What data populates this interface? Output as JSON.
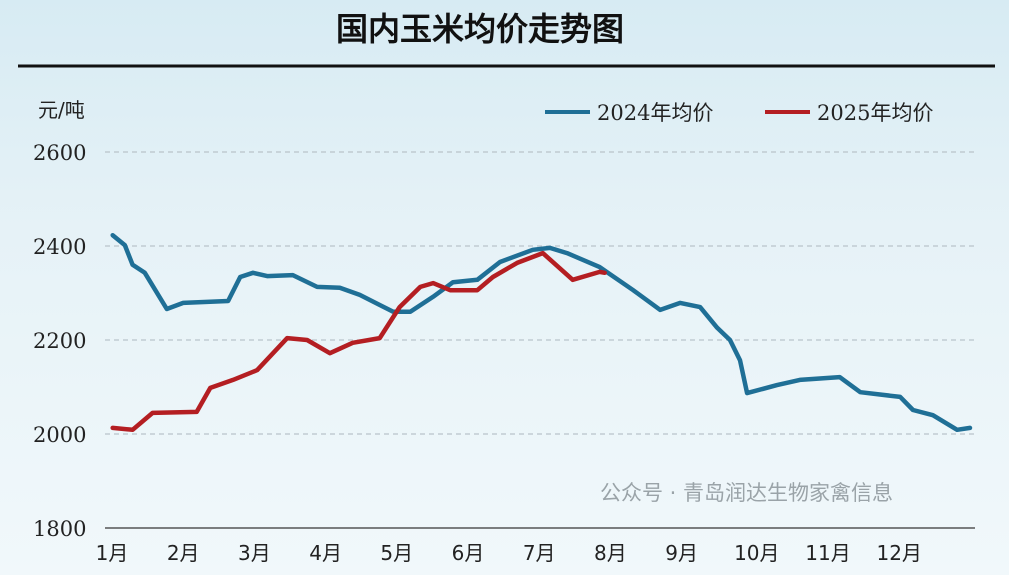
{
  "chart_data": {
    "type": "line",
    "title": "国内玉米均价走势图",
    "ylabel": "元/吨",
    "xlabel": "",
    "ylim": [
      1800,
      2600
    ],
    "yticks": [
      1800,
      2000,
      2200,
      2400,
      2600
    ],
    "xticks": [
      "1月",
      "2月",
      "3月",
      "4月",
      "5月",
      "6月",
      "7月",
      "8月",
      "9月",
      "10月",
      "11月",
      "12月"
    ],
    "grid": true,
    "legend_position": "top-right",
    "series": [
      {
        "name": "2024年均价",
        "color": "#1f6f96",
        "x": [
          1.01,
          1.18,
          1.29,
          1.46,
          1.77,
          2.0,
          2.63,
          2.8,
          2.98,
          3.18,
          3.54,
          3.88,
          4.2,
          4.48,
          4.95,
          5.19,
          5.51,
          5.79,
          6.13,
          6.45,
          6.91,
          7.15,
          7.39,
          7.85,
          8.32,
          8.7,
          8.98,
          9.26,
          9.5,
          9.68,
          9.82,
          9.92,
          10.34,
          10.66,
          11.22,
          11.51,
          12.07,
          12.25,
          12.53,
          12.87,
          13.05
        ],
        "y": [
          2423,
          2402,
          2360,
          2343,
          2266,
          2279,
          2283,
          2334,
          2343,
          2336,
          2338,
          2313,
          2311,
          2296,
          2260,
          2260,
          2292,
          2323,
          2328,
          2366,
          2392,
          2396,
          2385,
          2355,
          2306,
          2264,
          2279,
          2270,
          2226,
          2200,
          2157,
          2087,
          2104,
          2115,
          2121,
          2089,
          2079,
          2051,
          2040,
          2009,
          2013
        ]
      },
      {
        "name": "2025年均价",
        "color": "#b41e22",
        "x": [
          1.01,
          1.29,
          1.57,
          2.19,
          2.38,
          2.7,
          3.04,
          3.46,
          3.74,
          4.06,
          4.38,
          4.76,
          5.04,
          5.33,
          5.51,
          5.75,
          6.13,
          6.35,
          6.69,
          7.05,
          7.47,
          7.85,
          7.92
        ],
        "y": [
          2013,
          2009,
          2045,
          2047,
          2098,
          2115,
          2136,
          2204,
          2200,
          2172,
          2194,
          2204,
          2270,
          2313,
          2321,
          2306,
          2306,
          2334,
          2364,
          2385,
          2328,
          2345,
          2343
        ]
      }
    ]
  },
  "watermark": "公众号 · 青岛润达生物家禽信息"
}
